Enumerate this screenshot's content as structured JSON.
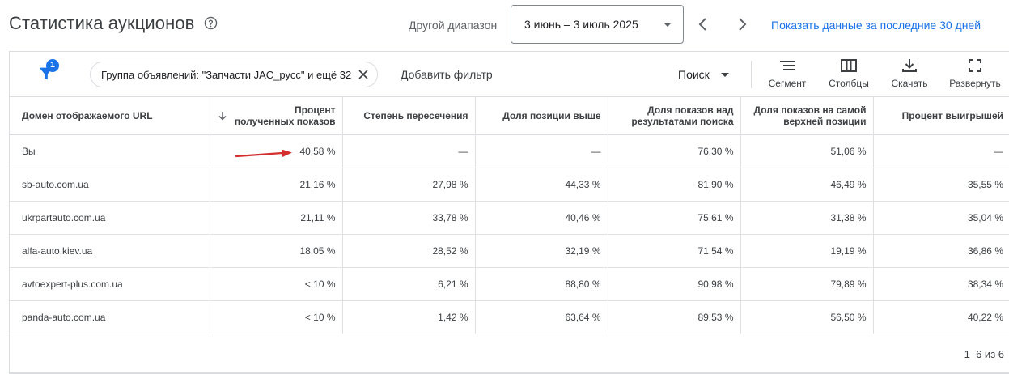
{
  "header": {
    "title": "Статистика аукционов",
    "range_label": "Другой диапазон",
    "date_range": "3 июнь – 3 июль 2025",
    "last30_link": "Показать данные за последние 30 дней",
    "icons": {
      "help": "help-icon",
      "prev": "chevron-left-icon",
      "next": "chevron-right-icon",
      "caret": "caret-down-icon"
    }
  },
  "toolbar": {
    "filter_badge": "1",
    "filter_chip": "Группа объявлений: \"Запчасти JAC_русс\" и ещё 32",
    "add_filter": "Добавить фильтр",
    "search": "Поиск",
    "segment": "Сегмент",
    "columns": "Столбцы",
    "download": "Скачать",
    "expand": "Развернуть",
    "icons": {
      "filter": "filter-icon",
      "close": "close-icon",
      "segment": "segment-icon",
      "columns": "columns-icon",
      "download": "download-icon",
      "expand": "expand-icon"
    }
  },
  "table": {
    "columns": [
      {
        "label": "Домен отображаемого URL"
      },
      {
        "label": "Процент полученных показов",
        "sorted": "desc"
      },
      {
        "label": "Степень пересечения"
      },
      {
        "label": "Доля позиции выше"
      },
      {
        "label": "Доля показов над результатами поиска"
      },
      {
        "label": "Доля показов на самой верхней позиции"
      },
      {
        "label": "Процент выигрышей"
      }
    ],
    "rows": [
      {
        "domain": "Вы",
        "impr_share": "40,58 %",
        "overlap": "—",
        "pos_above": "—",
        "top_rate": "76,30 %",
        "abs_top": "51,06 %",
        "outranking": "—"
      },
      {
        "domain": "sb-auto.com.ua",
        "impr_share": "21,16 %",
        "overlap": "27,98 %",
        "pos_above": "44,33 %",
        "top_rate": "81,90 %",
        "abs_top": "46,49 %",
        "outranking": "35,55 %"
      },
      {
        "domain": "ukrpartauto.com.ua",
        "impr_share": "21,11 %",
        "overlap": "33,78 %",
        "pos_above": "40,46 %",
        "top_rate": "75,61 %",
        "abs_top": "31,38 %",
        "outranking": "35,04 %"
      },
      {
        "domain": "alfa-auto.kiev.ua",
        "impr_share": "18,05 %",
        "overlap": "28,52 %",
        "pos_above": "32,19 %",
        "top_rate": "71,54 %",
        "abs_top": "19,19 %",
        "outranking": "36,86 %"
      },
      {
        "domain": "avtoexpert-plus.com.ua",
        "impr_share": "< 10 %",
        "overlap": "6,21 %",
        "pos_above": "88,80 %",
        "top_rate": "90,98 %",
        "abs_top": "79,89 %",
        "outranking": "38,34 %"
      },
      {
        "domain": "panda-auto.com.ua",
        "impr_share": "< 10 %",
        "overlap": "1,42 %",
        "pos_above": "63,64 %",
        "top_rate": "89,53 %",
        "abs_top": "56,50 %",
        "outranking": "40,22 %"
      }
    ],
    "pagination": "1–6 из 6"
  },
  "annotation": {
    "arrow_color": "#d32f2f"
  },
  "colors": {
    "accent": "#1a73e8",
    "text": "#202124",
    "divider": "#dadce0"
  }
}
